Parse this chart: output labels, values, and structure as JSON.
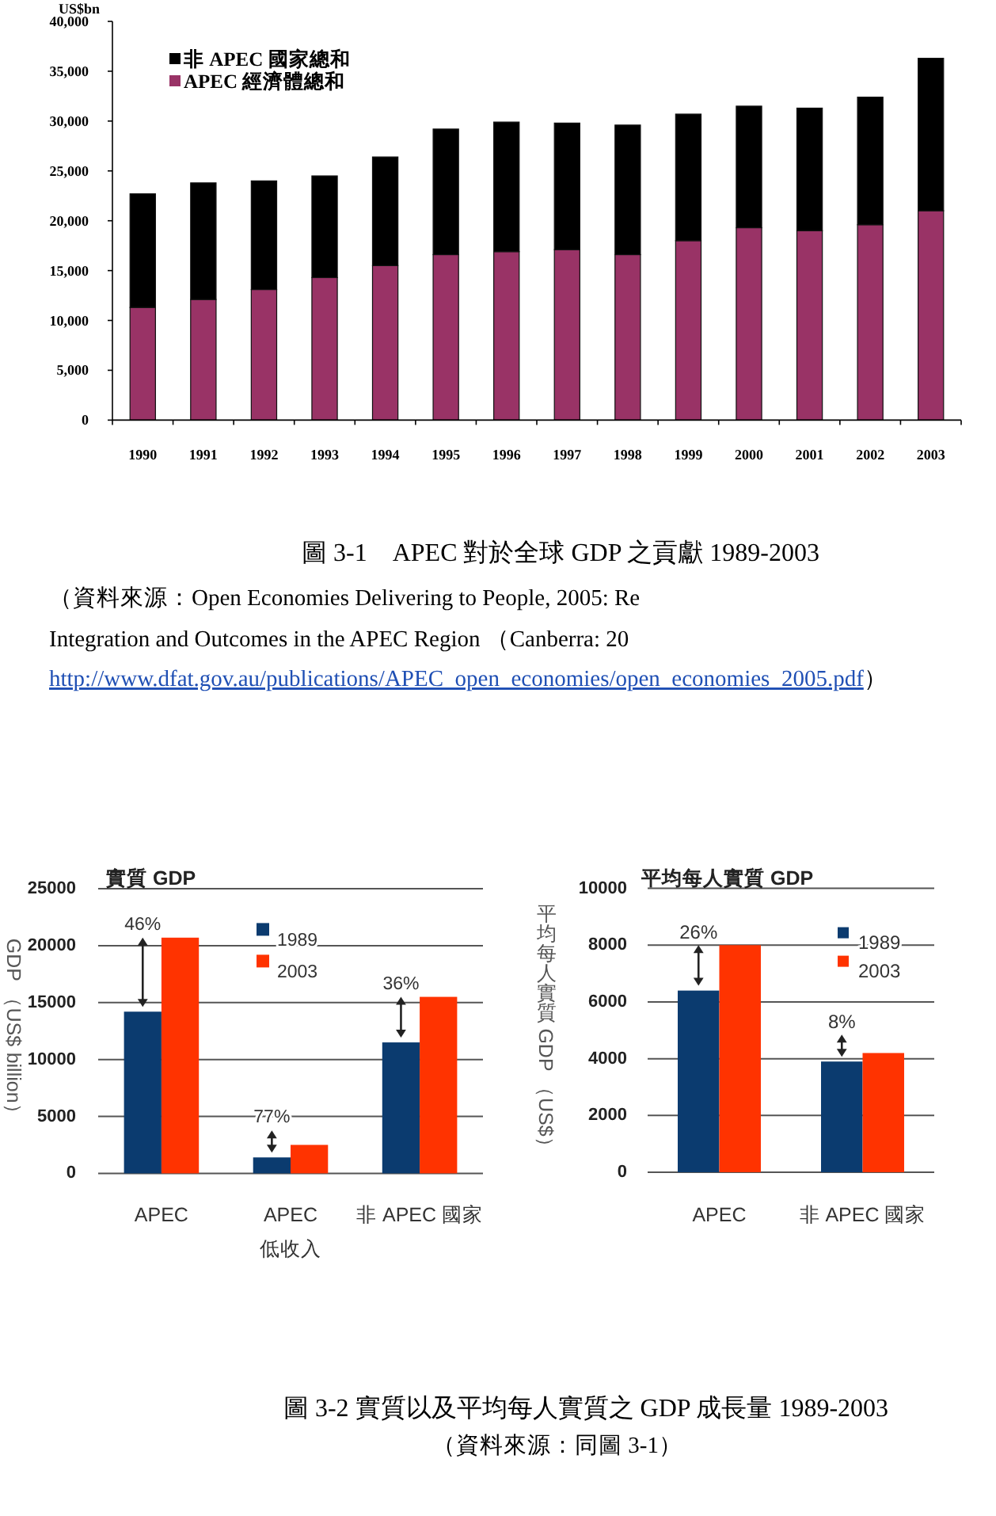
{
  "chart_data": [
    {
      "type": "bar",
      "stacked": true,
      "ylabel": "US$bn",
      "categories": [
        "1990",
        "1991",
        "1992",
        "1993",
        "1994",
        "1995",
        "1996",
        "1997",
        "1998",
        "1999",
        "2000",
        "2001",
        "2002",
        "2003"
      ],
      "series": [
        {
          "name": "APEC 經濟體總和",
          "color": "#993366",
          "values": [
            11300,
            12100,
            13100,
            14300,
            15500,
            16600,
            16900,
            17100,
            16600,
            18000,
            19300,
            19000,
            19600,
            21000
          ]
        },
        {
          "name": "非 APEC 國家總和",
          "color": "#000000",
          "values": [
            11400,
            11700,
            10900,
            10200,
            10900,
            12600,
            13000,
            12700,
            13000,
            12700,
            12200,
            12300,
            12800,
            15300
          ]
        }
      ],
      "ylim": [
        0,
        40000
      ],
      "yticks": [
        0,
        {
          "value": 5000,
          "label": "5,000"
        },
        {
          "value": 10000,
          "label": "10,000"
        },
        {
          "value": 15000,
          "label": "15,000"
        },
        {
          "value": 20000,
          "label": "20,000"
        },
        {
          "value": 25000,
          "label": "25,000"
        },
        {
          "value": 30000,
          "label": "30,000"
        },
        {
          "value": 35000,
          "label": "35,000"
        },
        {
          "value": 40000,
          "label": "40,000"
        }
      ],
      "legend": "top left",
      "annotations": [
        "圖 3-1　APEC 對於全球 GDP 之貢獻 1989-2003",
        "（資料來源：Open Economies Delivering to People, 2005: Re",
        "Integration and Outcomes in the APEC Region （Canberra: 20",
        "http://www.dfat.gov.au/publications/APEC_open_economies/open_economies_2005.pdf）"
      ]
    },
    {
      "type": "bar",
      "title": "實質 GDP",
      "ylabel": "GDP （US$ billion）",
      "categories": [
        "APEC",
        "APEC\n低收入",
        "非 APEC 國家"
      ],
      "series": [
        {
          "name": "1989",
          "color": "#0b3b6f",
          "values": [
            14200,
            1400,
            11500
          ]
        },
        {
          "name": "2003",
          "color": "#ff3300",
          "values": [
            20700,
            2500,
            15500
          ]
        }
      ],
      "ylim": [
        0,
        25000
      ],
      "yticks": [
        0,
        5000,
        10000,
        15000,
        20000,
        25000
      ],
      "grid": "y",
      "legend": "top",
      "annotations": [
        {
          "text": "46%",
          "x": "APEC",
          "y": 20700
        },
        {
          "text": "77%",
          "x": "APEC\n低收入",
          "y": 2500
        },
        {
          "text": "36%",
          "x": "非 APEC 國家",
          "y": 15500
        },
        "圖 3-2 實質以及平均每人實質之 GDP 成長量 1989-2003",
        "（資料來源：同圖 3-1）"
      ]
    },
    {
      "type": "bar",
      "title": "平均每人實質 GDP",
      "ylabel": "平均每人實質 GDP （US$）",
      "categories": [
        "APEC",
        "非 APEC 國家"
      ],
      "series": [
        {
          "name": "1989",
          "color": "#0b3b6f",
          "values": [
            6400,
            3900
          ]
        },
        {
          "name": "2003",
          "color": "#ff3300",
          "values": [
            8000,
            4200
          ]
        }
      ],
      "ylim": [
        0,
        10000
      ],
      "yticks": [
        0,
        2000,
        4000,
        6000,
        8000,
        10000
      ],
      "grid": "y",
      "legend": "top right",
      "annotations": [
        {
          "text": "26%",
          "x": "APEC",
          "y": 8000
        },
        {
          "text": "8%",
          "x": "非 APEC 國家",
          "y": 4200
        }
      ]
    }
  ]
}
